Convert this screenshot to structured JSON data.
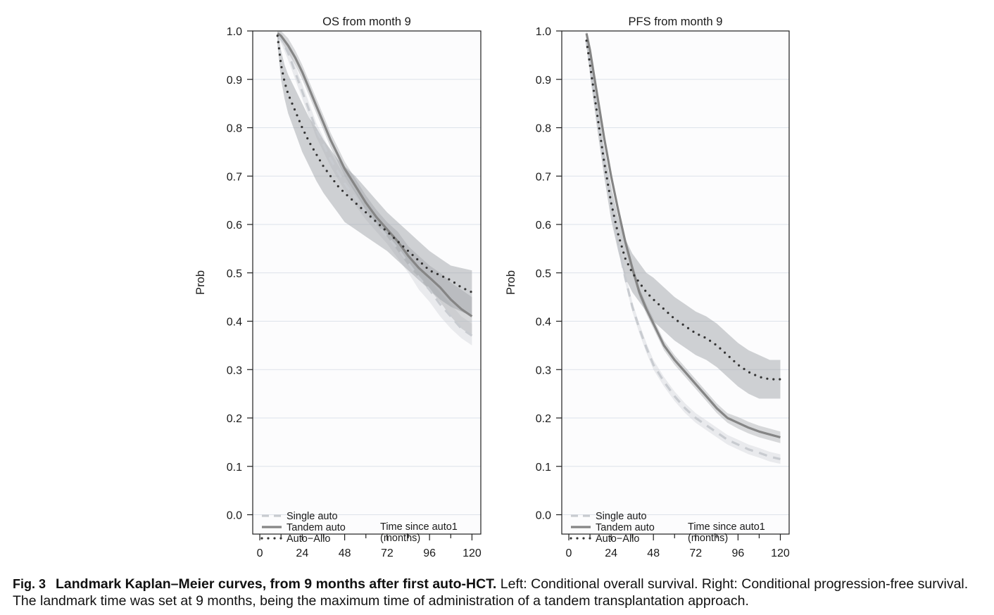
{
  "chart_data": [
    {
      "type": "line",
      "title": "OS from month 9",
      "xlabel": "",
      "ylabel": "Prob",
      "xlim": [
        -4,
        125
      ],
      "ylim": [
        -0.04,
        1.0
      ],
      "xticks": [
        0,
        24,
        48,
        72,
        96,
        120
      ],
      "yticks": [
        0.0,
        0.1,
        0.2,
        0.3,
        0.4,
        0.5,
        0.6,
        0.7,
        0.8,
        0.9,
        1.0
      ],
      "ytick_labels": [
        "0.0",
        "0.1",
        "0.2",
        "0.3",
        "0.4",
        "0.5",
        "0.6",
        "0.7",
        "0.8",
        "0.9",
        "1.0"
      ],
      "xtick_labels": [
        "0",
        "24",
        "48",
        "72",
        "96",
        "120"
      ],
      "grid": "horizontal",
      "legend_position": "bottom-left",
      "annotation": [
        "Time since auto1",
        "(months)"
      ],
      "series": [
        {
          "name": "Single auto",
          "style": "dashed",
          "color": "#c8cbd0",
          "x": [
            10,
            12,
            16,
            20,
            24,
            28,
            32,
            36,
            40,
            44,
            48,
            54,
            60,
            66,
            72,
            78,
            84,
            90,
            96,
            102,
            108,
            114,
            120
          ],
          "y": [
            0.99,
            0.985,
            0.955,
            0.915,
            0.875,
            0.835,
            0.795,
            0.765,
            0.735,
            0.71,
            0.685,
            0.655,
            0.625,
            0.6,
            0.575,
            0.55,
            0.52,
            0.49,
            0.465,
            0.435,
            0.41,
            0.385,
            0.37
          ],
          "ci_lower": [
            0.98,
            0.975,
            0.94,
            0.9,
            0.86,
            0.82,
            0.78,
            0.75,
            0.72,
            0.695,
            0.67,
            0.64,
            0.61,
            0.585,
            0.56,
            0.53,
            0.5,
            0.465,
            0.44,
            0.41,
            0.385,
            0.365,
            0.35
          ],
          "ci_upper": [
            1.0,
            0.995,
            0.97,
            0.93,
            0.89,
            0.85,
            0.81,
            0.78,
            0.75,
            0.725,
            0.7,
            0.67,
            0.64,
            0.615,
            0.59,
            0.565,
            0.54,
            0.51,
            0.485,
            0.46,
            0.435,
            0.41,
            0.395
          ]
        },
        {
          "name": "Tandem auto",
          "style": "solid",
          "color": "#858585",
          "x": [
            10,
            12,
            16,
            20,
            24,
            28,
            32,
            36,
            40,
            44,
            48,
            54,
            60,
            66,
            72,
            78,
            84,
            90,
            96,
            102,
            108,
            114,
            120
          ],
          "y": [
            0.995,
            0.99,
            0.97,
            0.945,
            0.915,
            0.88,
            0.845,
            0.81,
            0.775,
            0.745,
            0.715,
            0.68,
            0.645,
            0.615,
            0.59,
            0.565,
            0.535,
            0.51,
            0.49,
            0.47,
            0.445,
            0.425,
            0.41
          ],
          "ci_lower": [
            0.985,
            0.98,
            0.955,
            0.93,
            0.9,
            0.865,
            0.83,
            0.795,
            0.76,
            0.73,
            0.7,
            0.665,
            0.63,
            0.6,
            0.575,
            0.545,
            0.515,
            0.49,
            0.465,
            0.44,
            0.41,
            0.385,
            0.37
          ],
          "ci_upper": [
            1.0,
            1.0,
            0.985,
            0.96,
            0.93,
            0.895,
            0.86,
            0.825,
            0.79,
            0.76,
            0.73,
            0.695,
            0.66,
            0.63,
            0.605,
            0.585,
            0.555,
            0.535,
            0.515,
            0.5,
            0.48,
            0.465,
            0.45
          ]
        },
        {
          "name": "Auto−Allo",
          "style": "dotted",
          "color": "#333333",
          "x": [
            10,
            12,
            14,
            16,
            20,
            24,
            28,
            32,
            36,
            40,
            44,
            48,
            54,
            60,
            66,
            72,
            78,
            84,
            90,
            96,
            102,
            108,
            114,
            120
          ],
          "y": [
            0.99,
            0.93,
            0.895,
            0.87,
            0.835,
            0.8,
            0.77,
            0.745,
            0.72,
            0.7,
            0.68,
            0.665,
            0.645,
            0.625,
            0.605,
            0.585,
            0.565,
            0.545,
            0.525,
            0.505,
            0.495,
            0.485,
            0.47,
            0.46
          ],
          "ci_lower": [
            0.97,
            0.9,
            0.86,
            0.83,
            0.79,
            0.75,
            0.72,
            0.69,
            0.665,
            0.645,
            0.625,
            0.605,
            0.59,
            0.575,
            0.56,
            0.545,
            0.525,
            0.505,
            0.485,
            0.465,
            0.445,
            0.43,
            0.42,
            0.41
          ],
          "ci_upper": [
            1.0,
            0.96,
            0.93,
            0.91,
            0.88,
            0.85,
            0.82,
            0.8,
            0.775,
            0.755,
            0.735,
            0.72,
            0.7,
            0.675,
            0.65,
            0.625,
            0.605,
            0.585,
            0.565,
            0.545,
            0.53,
            0.515,
            0.51,
            0.505
          ]
        }
      ]
    },
    {
      "type": "line",
      "title": "PFS from month 9",
      "xlabel": "",
      "ylabel": "Prob",
      "xlim": [
        -4,
        125
      ],
      "ylim": [
        -0.04,
        1.0
      ],
      "xticks": [
        0,
        24,
        48,
        72,
        96,
        120
      ],
      "yticks": [
        0.0,
        0.1,
        0.2,
        0.3,
        0.4,
        0.5,
        0.6,
        0.7,
        0.8,
        0.9,
        1.0
      ],
      "ytick_labels": [
        "0.0",
        "0.1",
        "0.2",
        "0.3",
        "0.4",
        "0.5",
        "0.6",
        "0.7",
        "0.8",
        "0.9",
        "1.0"
      ],
      "xtick_labels": [
        "0",
        "24",
        "48",
        "72",
        "96",
        "120"
      ],
      "grid": "horizontal",
      "legend_position": "bottom-left",
      "annotation": [
        "Time since auto1",
        "(months)"
      ],
      "series": [
        {
          "name": "Single auto",
          "style": "dashed",
          "color": "#c8cbd0",
          "x": [
            10,
            12,
            16,
            20,
            24,
            28,
            32,
            36,
            40,
            44,
            48,
            54,
            60,
            66,
            72,
            78,
            84,
            90,
            96,
            102,
            108,
            114,
            120
          ],
          "y": [
            0.98,
            0.93,
            0.83,
            0.73,
            0.64,
            0.56,
            0.49,
            0.43,
            0.385,
            0.345,
            0.31,
            0.275,
            0.245,
            0.22,
            0.2,
            0.185,
            0.17,
            0.155,
            0.145,
            0.135,
            0.128,
            0.12,
            0.115
          ],
          "ci_lower": [
            0.97,
            0.92,
            0.82,
            0.72,
            0.63,
            0.55,
            0.48,
            0.42,
            0.375,
            0.335,
            0.3,
            0.265,
            0.235,
            0.21,
            0.19,
            0.175,
            0.16,
            0.145,
            0.135,
            0.125,
            0.118,
            0.11,
            0.105
          ],
          "ci_upper": [
            0.99,
            0.94,
            0.84,
            0.74,
            0.65,
            0.57,
            0.5,
            0.44,
            0.395,
            0.355,
            0.32,
            0.285,
            0.255,
            0.23,
            0.21,
            0.195,
            0.18,
            0.165,
            0.155,
            0.145,
            0.138,
            0.13,
            0.125
          ]
        },
        {
          "name": "Tandem auto",
          "style": "solid",
          "color": "#858585",
          "x": [
            10,
            12,
            16,
            20,
            24,
            28,
            32,
            36,
            40,
            44,
            48,
            54,
            60,
            66,
            72,
            78,
            84,
            90,
            96,
            102,
            108,
            114,
            120
          ],
          "y": [
            0.995,
            0.96,
            0.87,
            0.78,
            0.7,
            0.63,
            0.565,
            0.51,
            0.46,
            0.425,
            0.395,
            0.35,
            0.32,
            0.295,
            0.27,
            0.245,
            0.22,
            0.2,
            0.19,
            0.18,
            0.172,
            0.166,
            0.16
          ],
          "ci_lower": [
            0.985,
            0.95,
            0.86,
            0.77,
            0.69,
            0.62,
            0.555,
            0.5,
            0.45,
            0.415,
            0.385,
            0.34,
            0.31,
            0.285,
            0.26,
            0.235,
            0.21,
            0.19,
            0.178,
            0.168,
            0.16,
            0.154,
            0.148
          ],
          "ci_upper": [
            1.0,
            0.97,
            0.88,
            0.79,
            0.71,
            0.64,
            0.575,
            0.52,
            0.47,
            0.435,
            0.405,
            0.36,
            0.33,
            0.305,
            0.28,
            0.255,
            0.23,
            0.21,
            0.202,
            0.192,
            0.184,
            0.178,
            0.172
          ]
        },
        {
          "name": "Auto−Allo",
          "style": "dotted",
          "color": "#333333",
          "x": [
            10,
            12,
            16,
            20,
            24,
            28,
            32,
            36,
            40,
            44,
            48,
            54,
            60,
            66,
            72,
            78,
            84,
            90,
            96,
            102,
            108,
            114,
            120
          ],
          "y": [
            0.98,
            0.93,
            0.83,
            0.73,
            0.645,
            0.58,
            0.53,
            0.5,
            0.48,
            0.46,
            0.445,
            0.425,
            0.405,
            0.39,
            0.375,
            0.365,
            0.35,
            0.33,
            0.31,
            0.295,
            0.285,
            0.28,
            0.28
          ],
          "ci_lower": [
            0.97,
            0.91,
            0.8,
            0.7,
            0.61,
            0.545,
            0.49,
            0.46,
            0.44,
            0.42,
            0.4,
            0.38,
            0.36,
            0.345,
            0.33,
            0.32,
            0.305,
            0.285,
            0.265,
            0.25,
            0.24,
            0.24,
            0.24
          ],
          "ci_upper": [
            0.99,
            0.95,
            0.86,
            0.76,
            0.68,
            0.615,
            0.57,
            0.54,
            0.52,
            0.5,
            0.49,
            0.47,
            0.45,
            0.435,
            0.42,
            0.41,
            0.395,
            0.375,
            0.355,
            0.34,
            0.33,
            0.32,
            0.32
          ]
        }
      ]
    }
  ],
  "caption": {
    "label": "Fig. 3",
    "title": "Landmark Kaplan–Meier curves, from 9 months after first auto-HCT.",
    "text": " Left: Conditional overall survival. Right: Conditional progression-free survival. The landmark time was set at 9 months, being the maximum time of administration of a tandem transplantation approach."
  }
}
